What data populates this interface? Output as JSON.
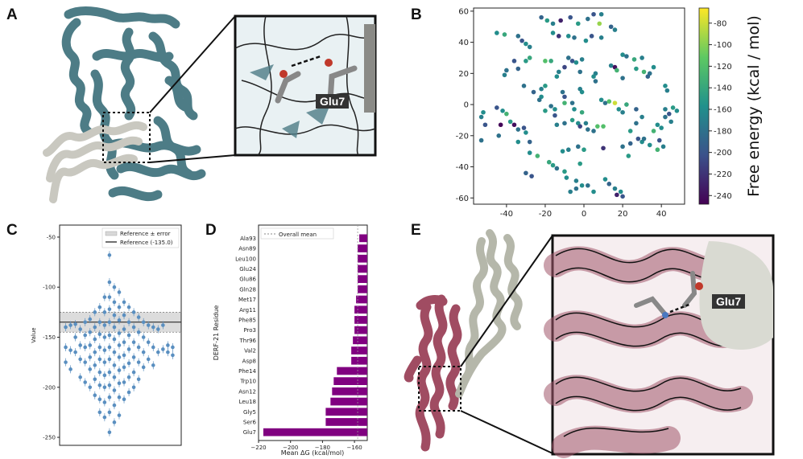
{
  "panels": {
    "a": {
      "letter": "A",
      "inset_label": "Glu7"
    },
    "b": {
      "letter": "B"
    },
    "c": {
      "letter": "C"
    },
    "d": {
      "letter": "D"
    },
    "e": {
      "letter": "E",
      "inset_label": "Glu7"
    }
  },
  "colors": {
    "protein_a": "#4d7c86",
    "ligand_a": "#c9c8c0",
    "protein_e": "#a04c62",
    "ligand_e": "#b5b7aa",
    "bar": "#800080",
    "point": "#5a8fc0"
  },
  "chart_data": [
    {
      "type": "scatter",
      "panel": "B",
      "colorbar_label": "Free energy (kcal / mol)",
      "colormap": "viridis",
      "xlim": [
        -57,
        52
      ],
      "ylim": [
        -64,
        62
      ],
      "x_ticks": [
        -40,
        -20,
        0,
        20,
        40
      ],
      "y_ticks": [
        -60,
        -40,
        -20,
        0,
        20,
        40,
        60
      ],
      "clim": [
        -248,
        -66
      ],
      "colorbar_ticks": [
        -80,
        -100,
        -120,
        -140,
        -160,
        -180,
        -200,
        -220,
        -240
      ],
      "points": [
        [
          -22,
          56,
          -190
        ],
        [
          -19,
          54,
          -150
        ],
        [
          -16,
          52,
          -170
        ],
        [
          -12,
          54,
          -230
        ],
        [
          -7,
          56,
          -200
        ],
        [
          -3,
          52,
          -150
        ],
        [
          2,
          55,
          -180
        ],
        [
          5,
          58,
          -200
        ],
        [
          9,
          58,
          -170
        ],
        [
          8,
          52,
          -95
        ],
        [
          14,
          50,
          -190
        ],
        [
          16,
          48,
          -170
        ],
        [
          -45,
          46,
          -160
        ],
        [
          -41,
          45,
          -140
        ],
        [
          -34,
          44,
          -180
        ],
        [
          -32,
          41,
          -200
        ],
        [
          -30,
          39,
          -160
        ],
        [
          -28,
          37,
          -170
        ],
        [
          -16,
          46,
          -160
        ],
        [
          -13,
          44,
          -220
        ],
        [
          -8,
          44,
          -160
        ],
        [
          -5,
          43,
          -180
        ],
        [
          1,
          41,
          -160
        ],
        [
          4,
          44,
          -200
        ],
        [
          9,
          43,
          -170
        ],
        [
          -28,
          30,
          -140
        ],
        [
          -30,
          28,
          -150
        ],
        [
          -36,
          28,
          -200
        ],
        [
          -40,
          22,
          -180
        ],
        [
          -41,
          19,
          -170
        ],
        [
          -34,
          23,
          -190
        ],
        [
          -20,
          28,
          -120
        ],
        [
          -17,
          28,
          -140
        ],
        [
          -8,
          30,
          -180
        ],
        [
          -6,
          28,
          -200
        ],
        [
          -4,
          27,
          -160
        ],
        [
          -10,
          24,
          -210
        ],
        [
          -13,
          21,
          -170
        ],
        [
          -14,
          18,
          -160
        ],
        [
          -1,
          29,
          -170
        ],
        [
          -2,
          21,
          -180
        ],
        [
          20,
          32,
          -160
        ],
        [
          22,
          31,
          -180
        ],
        [
          26,
          29,
          -140
        ],
        [
          30,
          30,
          -170
        ],
        [
          27,
          23,
          -150
        ],
        [
          31,
          21,
          -130
        ],
        [
          34,
          20,
          -180
        ],
        [
          33,
          18,
          -190
        ],
        [
          36,
          24,
          -160
        ],
        [
          14,
          25,
          -170
        ],
        [
          16,
          24,
          -240
        ],
        [
          17,
          22,
          -130
        ],
        [
          20,
          17,
          -180
        ],
        [
          6,
          20,
          -170
        ],
        [
          5,
          18,
          -160
        ],
        [
          6,
          15,
          -180
        ],
        [
          42,
          12,
          -160
        ],
        [
          43,
          9,
          -170
        ],
        [
          -20,
          12,
          -150
        ],
        [
          -22,
          10,
          -170
        ],
        [
          -26,
          8,
          -190
        ],
        [
          -31,
          12,
          -180
        ],
        [
          -11,
          8,
          -180
        ],
        [
          -10,
          5,
          -200
        ],
        [
          -10,
          1,
          -130
        ],
        [
          -2,
          10,
          -170
        ],
        [
          -1,
          8,
          -160
        ],
        [
          -22,
          5,
          -160
        ],
        [
          -23,
          3,
          -180
        ],
        [
          -45,
          -2,
          -200
        ],
        [
          -52,
          -5,
          -160
        ],
        [
          -53,
          -8,
          -170
        ],
        [
          -51,
          -13,
          -200
        ],
        [
          -53,
          -23,
          -180
        ],
        [
          -42,
          -4,
          -160
        ],
        [
          -40,
          -6,
          -130
        ],
        [
          -38,
          -11,
          -150
        ],
        [
          -43,
          -13,
          -245
        ],
        [
          -44,
          -20,
          -180
        ],
        [
          -36,
          -13,
          -240
        ],
        [
          -34,
          -16,
          -180
        ],
        [
          -31,
          -15,
          -200
        ],
        [
          -30,
          -18,
          -160
        ],
        [
          -28,
          -24,
          -190
        ],
        [
          -34,
          -24,
          -160
        ],
        [
          -20,
          -4,
          -150
        ],
        [
          -17,
          -1,
          -180
        ],
        [
          -15,
          -3,
          -160
        ],
        [
          -15,
          -7,
          -200
        ],
        [
          -14,
          -13,
          -170
        ],
        [
          -10,
          -12,
          -180
        ],
        [
          -6,
          -10,
          -150
        ],
        [
          -3,
          -12,
          -160
        ],
        [
          -2,
          -14,
          -210
        ],
        [
          1,
          -12,
          -170
        ],
        [
          2,
          -16,
          -180
        ],
        [
          5,
          -17,
          -180
        ],
        [
          7,
          -14,
          -120
        ],
        [
          10,
          -14,
          -120
        ],
        [
          -6,
          1,
          -180
        ],
        [
          -5,
          -3,
          -160
        ],
        [
          -1,
          -5,
          -140
        ],
        [
          9,
          3,
          -160
        ],
        [
          11,
          1,
          -180
        ],
        [
          13,
          2,
          -120
        ],
        [
          16,
          1,
          -80
        ],
        [
          18,
          -3,
          -160
        ],
        [
          20,
          -5,
          -170
        ],
        [
          22,
          0,
          -140
        ],
        [
          27,
          -3,
          -190
        ],
        [
          30,
          -8,
          -170
        ],
        [
          27,
          -12,
          -180
        ],
        [
          24,
          -17,
          -150
        ],
        [
          42,
          -3,
          -170
        ],
        [
          46,
          -2,
          -150
        ],
        [
          48,
          -4,
          -160
        ],
        [
          44,
          -6,
          -200
        ],
        [
          42,
          -8,
          -180
        ],
        [
          38,
          -13,
          -160
        ],
        [
          36,
          -17,
          -130
        ],
        [
          40,
          -15,
          -160
        ],
        [
          45,
          -11,
          -170
        ],
        [
          28,
          -22,
          -200
        ],
        [
          30,
          -24,
          -160
        ],
        [
          31,
          -22,
          -180
        ],
        [
          34,
          -26,
          -160
        ],
        [
          24,
          -25,
          -190
        ],
        [
          20,
          -27,
          -180
        ],
        [
          23,
          -33,
          -150
        ],
        [
          39,
          -23,
          -200
        ],
        [
          41,
          -27,
          -170
        ],
        [
          38,
          -29,
          -130
        ],
        [
          -28,
          -31,
          -160
        ],
        [
          -24,
          -33,
          -130
        ],
        [
          -18,
          -37,
          -140
        ],
        [
          -16,
          -39,
          -150
        ],
        [
          -14,
          -41,
          -180
        ],
        [
          -10,
          -43,
          -150
        ],
        [
          -9,
          -47,
          -160
        ],
        [
          -4,
          -49,
          -170
        ],
        [
          -11,
          -30,
          -160
        ],
        [
          -8,
          -29,
          -170
        ],
        [
          -3,
          -27,
          -180
        ],
        [
          0,
          -29,
          -150
        ],
        [
          10,
          -28,
          -220
        ],
        [
          -2,
          -38,
          -150
        ],
        [
          -30,
          -44,
          -190
        ],
        [
          -27,
          -46,
          -200
        ],
        [
          -7,
          -56,
          -170
        ],
        [
          -4,
          -54,
          -180
        ],
        [
          -1,
          -52,
          -160
        ],
        [
          2,
          -52,
          -180
        ],
        [
          5,
          -56,
          -160
        ],
        [
          11,
          -48,
          -160
        ],
        [
          13,
          -51,
          -190
        ],
        [
          16,
          -54,
          -170
        ],
        [
          17,
          -58,
          -230
        ],
        [
          19,
          -56,
          -160
        ],
        [
          20,
          -59,
          -200
        ]
      ]
    },
    {
      "type": "scatter",
      "panel": "C",
      "ylabel": "Value",
      "ylim": [
        -258,
        -38
      ],
      "y_ticks": [
        -50,
        -100,
        -150,
        -200,
        -250
      ],
      "legend": [
        {
          "label": "Reference ± error",
          "marker": "band"
        },
        {
          "label": "Reference (-135.0)",
          "marker": "line"
        }
      ],
      "legend_position": "top-right",
      "reference": -135.0,
      "reference_band": [
        -145,
        -125
      ],
      "columns": [
        {
          "x": 0.05,
          "values": [
            -140,
            -160,
            -175
          ]
        },
        {
          "x": 0.09,
          "values": [
            -138,
            -163,
            -182
          ]
        },
        {
          "x": 0.13,
          "values": [
            -137,
            -150,
            -165
          ]
        },
        {
          "x": 0.17,
          "values": [
            -142,
            -158,
            -172,
            -190
          ]
        },
        {
          "x": 0.21,
          "values": [
            -135,
            -148,
            -160,
            -175,
            -195
          ]
        },
        {
          "x": 0.25,
          "values": [
            -132,
            -145,
            -158,
            -170,
            -182,
            -200
          ]
        },
        {
          "x": 0.29,
          "values": [
            -125,
            -140,
            -152,
            -165,
            -178,
            -192,
            -208
          ]
        },
        {
          "x": 0.33,
          "values": [
            -120,
            -135,
            -147,
            -160,
            -172,
            -185,
            -198,
            -212,
            -225
          ]
        },
        {
          "x": 0.37,
          "values": [
            -110,
            -125,
            -138,
            -150,
            -163,
            -175,
            -188,
            -200,
            -215,
            -230
          ]
        },
        {
          "x": 0.41,
          "values": [
            -68,
            -95,
            -110,
            -122,
            -135,
            -148,
            -160,
            -172,
            -185,
            -198,
            -210,
            -225,
            -245
          ]
        },
        {
          "x": 0.45,
          "values": [
            -100,
            -115,
            -128,
            -140,
            -152,
            -165,
            -178,
            -190,
            -203,
            -218,
            -235
          ]
        },
        {
          "x": 0.49,
          "values": [
            -105,
            -120,
            -133,
            -146,
            -158,
            -170,
            -183,
            -196,
            -210,
            -228
          ]
        },
        {
          "x": 0.53,
          "values": [
            -115,
            -128,
            -142,
            -155,
            -168,
            -180,
            -195,
            -212
          ]
        },
        {
          "x": 0.57,
          "values": [
            -120,
            -135,
            -148,
            -162,
            -176,
            -190,
            -205
          ]
        },
        {
          "x": 0.61,
          "values": [
            -125,
            -140,
            -155,
            -170,
            -185,
            -200
          ]
        },
        {
          "x": 0.65,
          "values": [
            -130,
            -145,
            -160,
            -175,
            -192
          ]
        },
        {
          "x": 0.69,
          "values": [
            -135,
            -150,
            -165,
            -180
          ]
        },
        {
          "x": 0.73,
          "values": [
            -138,
            -155,
            -172
          ]
        },
        {
          "x": 0.77,
          "values": [
            -140,
            -160,
            -178
          ]
        },
        {
          "x": 0.81,
          "values": [
            -142,
            -165
          ]
        },
        {
          "x": 0.85,
          "values": [
            -138,
            -162
          ]
        },
        {
          "x": 0.89,
          "values": [
            -158,
            -165
          ]
        },
        {
          "x": 0.93,
          "values": [
            -160,
            -168
          ]
        }
      ]
    },
    {
      "type": "bar",
      "panel": "D",
      "orientation": "horizontal",
      "xlabel": "Mean ΔG (kcal/mol)",
      "ylabel": "DERF-21 Residue",
      "xlim": [
        -220,
        -152
      ],
      "x_ticks": [
        -220,
        -200,
        -180,
        -160
      ],
      "legend": [
        {
          "label": "Overall mean",
          "marker": "dashed-line"
        }
      ],
      "legend_position": "top-left",
      "overall_mean": -158,
      "categories": [
        "Ala93",
        "Asn89",
        "Leu100",
        "Glu24",
        "Glu86",
        "Gln28",
        "Met17",
        "Arg11",
        "Phe85",
        "Pro3",
        "Thr96",
        "Val2",
        "Asp8",
        "Phe14",
        "Trp10",
        "Asn12",
        "Leu18",
        "Gly5",
        "Ser6",
        "Glu7"
      ],
      "values": [
        -157,
        -158,
        -158,
        -158,
        -158,
        -158,
        -159,
        -160,
        -160,
        -160,
        -161,
        -162,
        -162,
        -171,
        -173,
        -174,
        -175,
        -178,
        -178,
        -217
      ]
    }
  ]
}
